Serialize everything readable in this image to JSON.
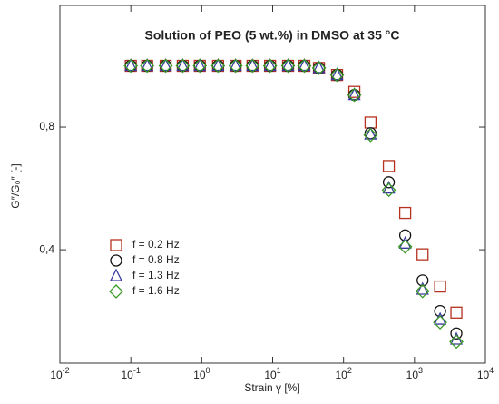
{
  "chart_data": {
    "type": "scatter",
    "title": "Solution of PEO (5 wt.%) in DMSO at 35 °C",
    "x_label": "Strain γ [%]",
    "y_label": "G″/G₀″ [-]",
    "x_log": true,
    "x": [
      0.1,
      0.17,
      0.31,
      0.54,
      0.94,
      1.7,
      3.0,
      5.2,
      9.2,
      16.5,
      28,
      45,
      81,
      142,
      240,
      435,
      740,
      1300,
      2300,
      3900
    ],
    "series": [
      {
        "name": "f = 0.2 Hz",
        "color": "#b5321f",
        "marker": "square",
        "values": [
          1.0,
          1.0,
          1.0,
          1.0,
          1.0,
          1.0,
          1.0,
          1.0,
          1.0,
          1.0,
          1.0,
          0.993,
          0.97,
          0.915,
          0.815,
          0.673,
          0.52,
          0.385,
          0.28,
          0.195
        ]
      },
      {
        "name": "f = 0.8 Hz",
        "color": "#111111",
        "marker": "circle",
        "values": [
          1.0,
          1.0,
          1.0,
          1.0,
          1.0,
          1.0,
          1.0,
          1.0,
          1.0,
          1.0,
          1.0,
          0.993,
          0.97,
          0.905,
          0.78,
          0.62,
          0.447,
          0.3,
          0.2,
          0.127
        ]
      },
      {
        "name": "f = 1.3 Hz",
        "color": "#3a3aa0",
        "marker": "triangle",
        "values": [
          1.0,
          1.0,
          1.0,
          1.0,
          1.0,
          1.0,
          1.0,
          1.0,
          1.0,
          1.0,
          1.0,
          0.993,
          0.97,
          0.905,
          0.776,
          0.6,
          0.42,
          0.27,
          0.172,
          0.107
        ]
      },
      {
        "name": "f = 1.6 Hz",
        "color": "#3c9a28",
        "marker": "diamond",
        "values": [
          1.0,
          1.0,
          1.0,
          1.0,
          1.0,
          1.0,
          1.0,
          1.0,
          1.0,
          1.0,
          1.0,
          0.993,
          0.97,
          0.905,
          0.774,
          0.595,
          0.41,
          0.265,
          0.163,
          0.1
        ]
      }
    ],
    "xlim": [
      0.01,
      10000
    ],
    "xticks": [
      {
        "value": 0.01,
        "label": "10",
        "exp": "-2"
      },
      {
        "value": 0.1,
        "label": "10",
        "exp": "-1"
      },
      {
        "value": 1,
        "label": "10",
        "exp": "0"
      },
      {
        "value": 10,
        "label": "10",
        "exp": "1"
      },
      {
        "value": 100,
        "label": "10",
        "exp": "2"
      },
      {
        "value": 1000,
        "label": "10",
        "exp": "3"
      },
      {
        "value": 10000,
        "label": "10",
        "exp": "4"
      }
    ],
    "ylim": [
      0.03,
      1.197
    ],
    "yticks": [
      {
        "value": 0.4,
        "label": "0,4"
      },
      {
        "value": 0.8,
        "label": "0,8"
      }
    ],
    "legend": "lower-left"
  }
}
